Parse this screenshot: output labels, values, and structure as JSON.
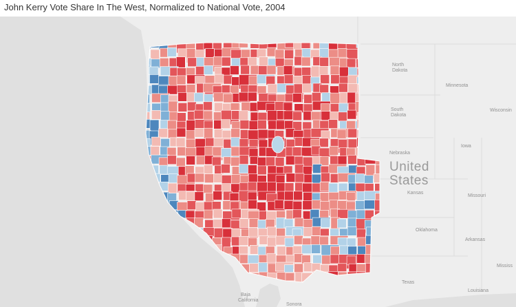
{
  "title": "John Kerry Vote Share In The West, Normalized to National Vote, 2004",
  "map_labels": {
    "north_dakota": [
      "North",
      "Dakota"
    ],
    "south_dakota": [
      "South",
      "Dakota"
    ],
    "minnesota": "Minnesota",
    "wisconsin": "Wisconsin",
    "nebraska": "Nebraska",
    "iowa": "Iowa",
    "kansas": "Kansas",
    "missouri": "Missouri",
    "oklahoma": "Oklahoma",
    "arkansas": "Arkansas",
    "texas": "Texas",
    "louisiana": "Louisiana",
    "mississippi": "Mississ",
    "country": [
      "United",
      "States"
    ],
    "baja": [
      "Baja",
      "California"
    ],
    "sonora": "Sonora"
  },
  "colors": {
    "strong_rep": "#d8303a",
    "rep": "#e3565a",
    "lean_rep": "#ec8d86",
    "slight_rep": "#f3bab3",
    "neutral": "#e9dede",
    "slight_dem": "#b2d2e8",
    "dem": "#7fb0d6",
    "strong_dem": "#4d87bd",
    "land": "#eeeeee",
    "water": "#e0e0e0",
    "border": "#ffffff"
  }
}
